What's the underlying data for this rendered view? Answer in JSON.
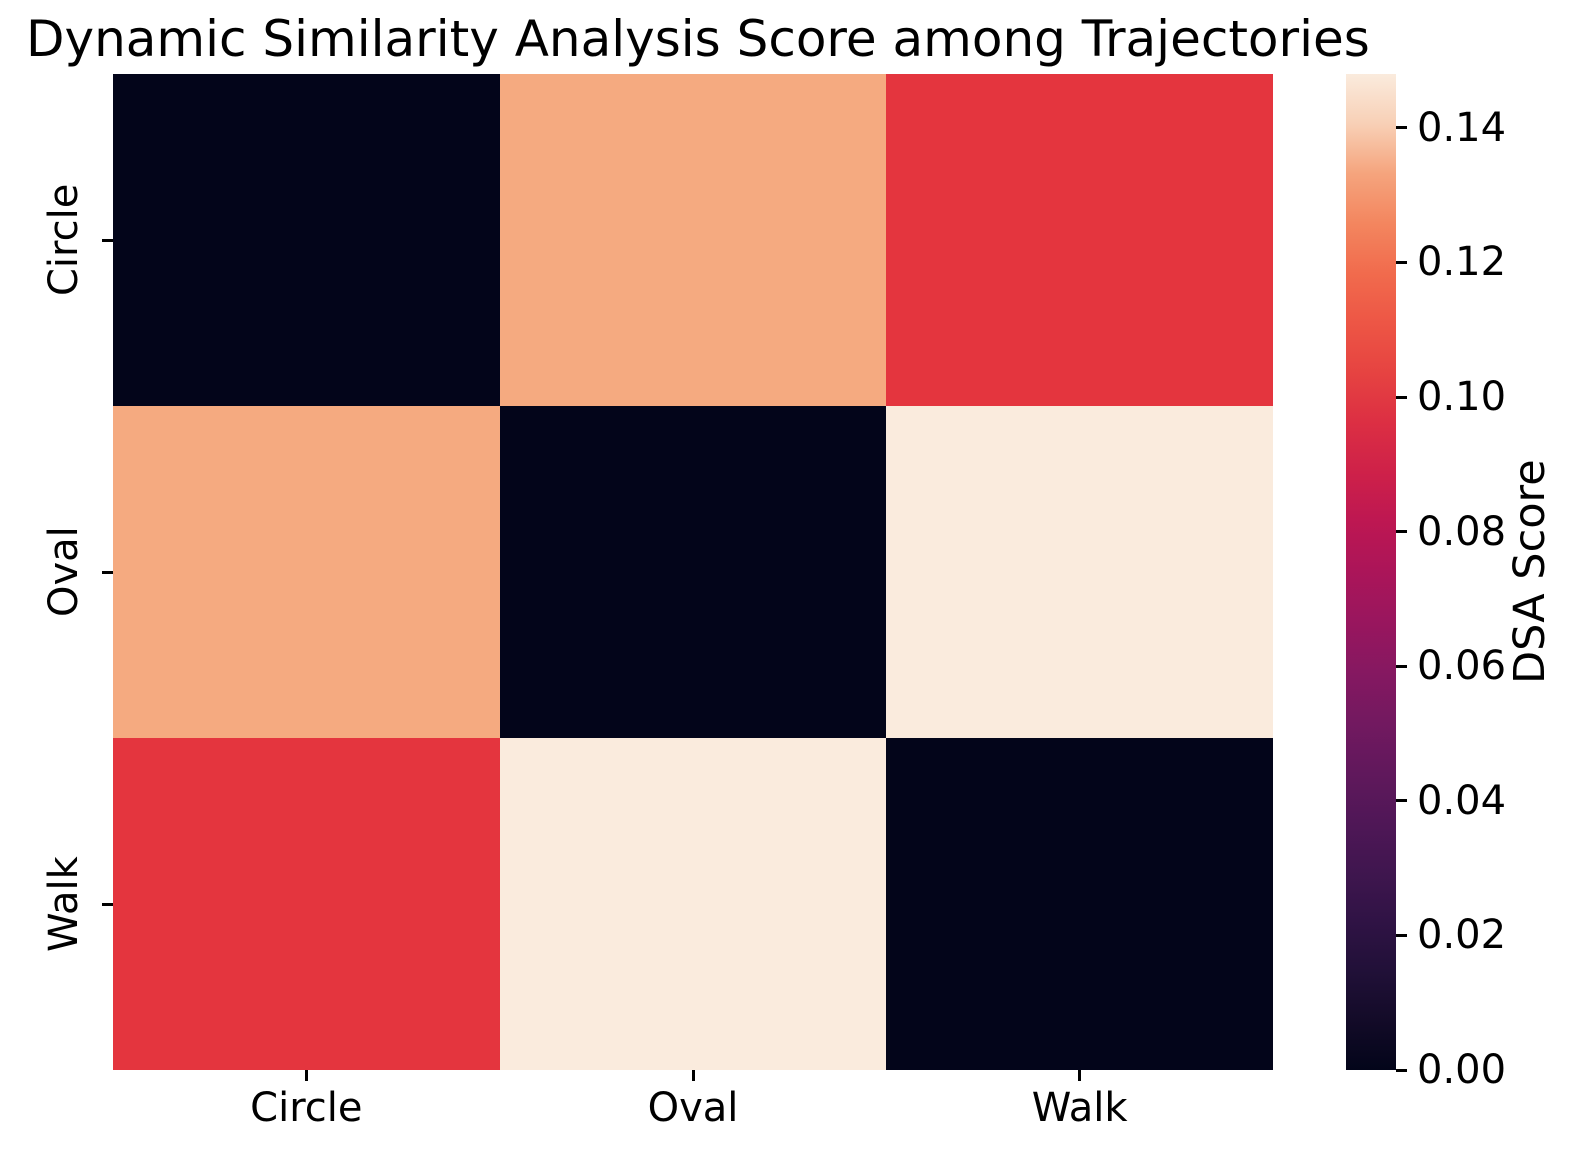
{
  "title": "Dynamic Similarity Analysis Score among Trajectories",
  "chart_data": {
    "type": "heatmap",
    "title": "Dynamic Similarity Analysis Score among Trajectories",
    "x_categories": [
      "Circle",
      "Oval",
      "Walk"
    ],
    "y_categories": [
      "Circle",
      "Oval",
      "Walk"
    ],
    "matrix": [
      [
        0.0,
        0.12,
        0.09
      ],
      [
        0.12,
        0.0,
        0.147
      ],
      [
        0.09,
        0.147,
        0.0
      ]
    ],
    "vmin": 0.0,
    "vmax": 0.148,
    "colormap": "rocket",
    "grid": false,
    "cell_colors": [
      [
        "#03051A",
        "#F5AA80",
        "#E4353E"
      ],
      [
        "#F5AA80",
        "#03051A",
        "#FAEBDD"
      ],
      [
        "#E4353E",
        "#FAEBDD",
        "#03051A"
      ]
    ],
    "colorbar": {
      "label": "DSA Score",
      "ticks": [
        {
          "label": "0.00",
          "value": 0.0
        },
        {
          "label": "0.02",
          "value": 0.02
        },
        {
          "label": "0.04",
          "value": 0.04
        },
        {
          "label": "0.06",
          "value": 0.06
        },
        {
          "label": "0.08",
          "value": 0.08
        },
        {
          "label": "0.10",
          "value": 0.1
        },
        {
          "label": "0.12",
          "value": 0.12
        },
        {
          "label": "0.14",
          "value": 0.14
        }
      ],
      "gradient_stops": [
        {
          "pos": 0,
          "color": "#03051A"
        },
        {
          "pos": 5,
          "color": "#130B28"
        },
        {
          "pos": 10,
          "color": "#211038"
        },
        {
          "pos": 15,
          "color": "#301345"
        },
        {
          "pos": 20,
          "color": "#40164F"
        },
        {
          "pos": 25,
          "color": "#501757"
        },
        {
          "pos": 30,
          "color": "#61185C"
        },
        {
          "pos": 35,
          "color": "#731960"
        },
        {
          "pos": 40,
          "color": "#861861"
        },
        {
          "pos": 45,
          "color": "#99165E"
        },
        {
          "pos": 50,
          "color": "#AB1559"
        },
        {
          "pos": 55,
          "color": "#BD1752"
        },
        {
          "pos": 60,
          "color": "#CE2149"
        },
        {
          "pos": 65,
          "color": "#DC2F43"
        },
        {
          "pos": 70,
          "color": "#E64341"
        },
        {
          "pos": 75,
          "color": "#ED5645"
        },
        {
          "pos": 80,
          "color": "#F16B4D"
        },
        {
          "pos": 85,
          "color": "#F3865F"
        },
        {
          "pos": 90,
          "color": "#F5A47D"
        },
        {
          "pos": 95,
          "color": "#F8D0B6"
        },
        {
          "pos": 100,
          "color": "#FAEBDD"
        }
      ]
    }
  }
}
